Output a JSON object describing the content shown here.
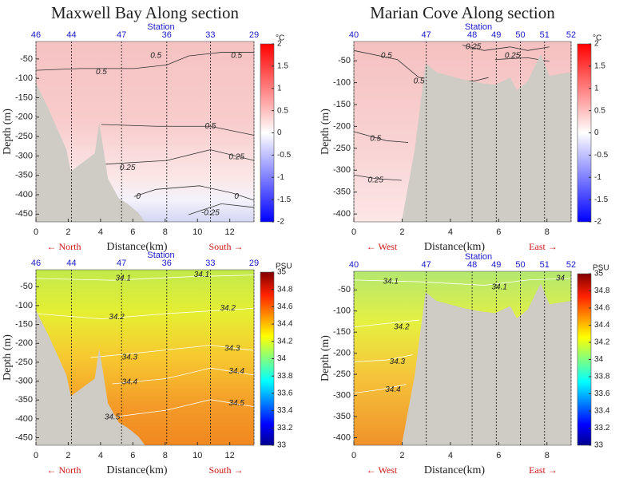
{
  "chart_data": [
    {
      "type": "contour",
      "title": "Maxwell Bay Along section",
      "x_label": "Distance(km)",
      "y_label": "Depth (m)",
      "station_label": "Station",
      "stations": {
        "names": [
          "46",
          "44",
          "47",
          "36",
          "33",
          "29"
        ],
        "x": [
          0,
          2.2,
          5.3,
          8.1,
          10.8,
          13.5
        ]
      },
      "xlim": [
        0,
        13.5
      ],
      "xticks": [
        0,
        2,
        4,
        6,
        8,
        10,
        12
      ],
      "ylim": [
        -470,
        -5
      ],
      "yticks": [
        -450,
        -400,
        -350,
        -300,
        -250,
        -200,
        -150,
        -100,
        -50
      ],
      "colorbar": {
        "label": "°C",
        "lim": [
          -2,
          2
        ],
        "ticks": [
          -2,
          -1.5,
          -1,
          -0.5,
          0,
          0.5,
          1,
          1.5,
          2
        ]
      },
      "direction_labels": [
        "← North",
        "South →"
      ],
      "contour_labels": [
        "0.5",
        "0.5",
        "0.5",
        "0.5",
        "0.25",
        "0.25",
        "0",
        "0",
        "-0.25"
      ]
    },
    {
      "type": "contour",
      "title": "Marian Cove Along section",
      "x_label": "Distance(km)",
      "y_label": "Depth (m)",
      "station_label": "Station",
      "stations": {
        "names": [
          "40",
          "47",
          "48",
          "49",
          "50",
          "51",
          "52"
        ],
        "x": [
          0,
          3.0,
          4.9,
          5.9,
          6.9,
          7.9,
          9.0
        ]
      },
      "xlim": [
        0,
        9
      ],
      "xticks": [
        0,
        2,
        4,
        6,
        8
      ],
      "ylim": [
        -418,
        -6
      ],
      "yticks": [
        -400,
        -350,
        -300,
        -250,
        -200,
        -150,
        -100,
        -50
      ],
      "colorbar": {
        "label": "°C",
        "lim": [
          -2,
          2
        ],
        "ticks": [
          -2,
          -1.5,
          -1,
          -0.5,
          0,
          0.5,
          1,
          1.5,
          2
        ]
      },
      "direction_labels": [
        "← West",
        "East →"
      ],
      "contour_labels": [
        "0.5",
        "0.25",
        "0.25",
        "0.5",
        "0.5",
        "0.25"
      ]
    },
    {
      "type": "contour",
      "x_label": "Distance(km)",
      "y_label": "Depth (m)",
      "station_label": "Station",
      "stations": {
        "names": [
          "46",
          "44",
          "47",
          "36",
          "33",
          "29"
        ],
        "x": [
          0,
          2.2,
          5.3,
          8.1,
          10.8,
          13.5
        ]
      },
      "xlim": [
        0,
        13.5
      ],
      "xticks": [
        0,
        2,
        4,
        6,
        8,
        10,
        12
      ],
      "ylim": [
        -470,
        -5
      ],
      "yticks": [
        -450,
        -400,
        -350,
        -300,
        -250,
        -200,
        -150,
        -100,
        -50
      ],
      "colorbar": {
        "label": "PSU",
        "lim": [
          33,
          35
        ],
        "ticks": [
          33,
          33.2,
          33.4,
          33.6,
          33.8,
          34,
          34.2,
          34.4,
          34.6,
          34.8,
          35
        ]
      },
      "direction_labels": [
        "← North",
        "South →"
      ],
      "contour_labels": [
        "34.1",
        "34.1",
        "34.2",
        "34.2",
        "34.3",
        "34.3",
        "34.4",
        "34.4",
        "34.5",
        "34.5"
      ]
    },
    {
      "type": "contour",
      "x_label": "Distance(km)",
      "y_label": "Depth (m)",
      "station_label": "Station",
      "stations": {
        "names": [
          "40",
          "47",
          "48",
          "49",
          "50",
          "51",
          "52"
        ],
        "x": [
          0,
          3.0,
          4.9,
          5.9,
          6.9,
          7.9,
          9.0
        ]
      },
      "xlim": [
        0,
        9
      ],
      "xticks": [
        0,
        2,
        4,
        6,
        8
      ],
      "ylim": [
        -418,
        -6
      ],
      "yticks": [
        -400,
        -350,
        -300,
        -250,
        -200,
        -150,
        -100,
        -50
      ],
      "colorbar": {
        "label": "PSU",
        "lim": [
          33,
          35
        ],
        "ticks": [
          33,
          33.2,
          33.4,
          33.6,
          33.8,
          34,
          34.2,
          34.4,
          34.6,
          34.8,
          35
        ]
      },
      "direction_labels": [
        "← West",
        "East →"
      ],
      "contour_labels": [
        "34.1",
        "34.1",
        "34",
        "34.2",
        "34.3",
        "34.4"
      ]
    }
  ]
}
